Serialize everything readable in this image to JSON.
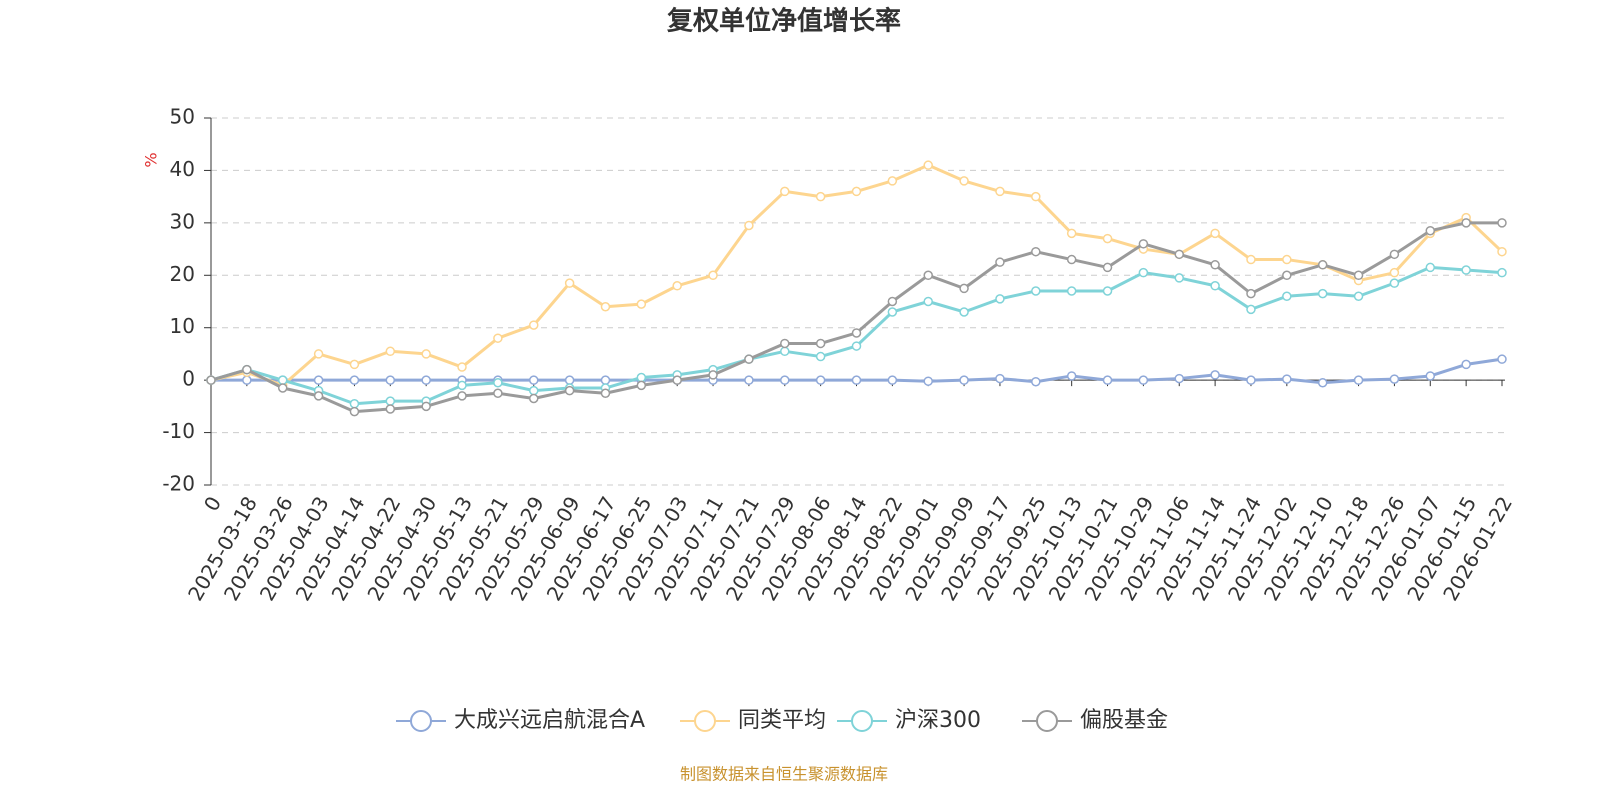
{
  "chart_data": {
    "type": "line",
    "title": "复权单位净值增长率",
    "y_label": "%",
    "source": "制图数据来自恒生聚源数据库",
    "categories": [
      "0",
      "2025-03-18",
      "2025-03-26",
      "2025-04-03",
      "2025-04-14",
      "2025-04-22",
      "2025-04-30",
      "2025-05-13",
      "2025-05-21",
      "2025-05-29",
      "2025-06-09",
      "2025-06-17",
      "2025-06-25",
      "2025-07-03",
      "2025-07-11",
      "2025-07-21",
      "2025-07-29",
      "2025-08-06",
      "2025-08-14",
      "2025-08-22",
      "2025-09-01",
      "2025-09-09",
      "2025-09-17",
      "2025-09-25",
      "2025-10-13",
      "2025-10-21",
      "2025-10-29",
      "2025-11-06",
      "2025-11-14",
      "2025-11-24",
      "2025-12-02",
      "2025-12-10",
      "2025-12-18",
      "2025-12-26",
      "2026-01-07",
      "2026-01-15",
      "2026-01-22"
    ],
    "series": [
      {
        "name": "大成兴远启航混合A",
        "color": "#8fa8d8",
        "values": [
          0,
          0,
          0,
          0,
          0,
          0,
          0,
          0,
          0,
          0,
          0,
          0,
          0,
          0,
          0,
          0,
          0,
          0,
          0,
          0,
          -0.2,
          0,
          0.3,
          -0.3,
          0.8,
          0,
          0,
          0.3,
          1,
          0,
          0.2,
          -0.5,
          0,
          0.2,
          0.8,
          3,
          4
        ]
      },
      {
        "name": "同类平均",
        "color": "#fdd58f",
        "values": [
          0,
          1.5,
          -1,
          5,
          3,
          5.5,
          5,
          2.5,
          8,
          10.5,
          18.5,
          14,
          14.5,
          18,
          20,
          29.5,
          36,
          35,
          36,
          38,
          41,
          38,
          36,
          35,
          28,
          27,
          25,
          24,
          28,
          23,
          23,
          22,
          19,
          20.5,
          28,
          31,
          24.5
        ]
      },
      {
        "name": "沪深300",
        "color": "#7fd3d8",
        "values": [
          0,
          2,
          0,
          -2,
          -4.5,
          -4,
          -4,
          -1,
          -0.5,
          -2,
          -1.5,
          -1.5,
          0.5,
          1,
          2,
          4,
          5.5,
          4.5,
          6.5,
          13,
          15,
          13,
          15.5,
          17,
          17,
          17,
          20.5,
          19.5,
          18,
          13.5,
          16,
          16.5,
          16,
          18.5,
          21.5,
          21,
          20.5
        ]
      },
      {
        "name": "偏股基金",
        "color": "#9a9a9a",
        "values": [
          0,
          2,
          -1.5,
          -3,
          -6,
          -5.5,
          -5,
          -3,
          -2.5,
          -3.5,
          -2,
          -2.5,
          -1,
          0,
          1,
          4,
          7,
          7,
          9,
          15,
          20,
          17.5,
          22.5,
          24.5,
          23,
          21.5,
          26,
          24,
          22,
          16.5,
          20,
          22,
          20,
          24,
          28.5,
          30,
          30
        ]
      }
    ],
    "ylim": [
      -20,
      50
    ],
    "yticks": [
      -20,
      -10,
      0,
      10,
      20,
      30,
      40,
      50
    ],
    "grid": true
  }
}
